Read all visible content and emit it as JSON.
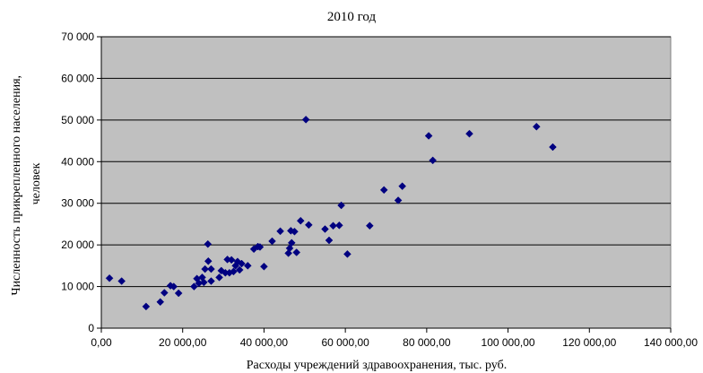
{
  "chart_data": {
    "type": "scatter",
    "title": "2010 год",
    "xlabel": "Расходы учреждений здравоохранения, тыс. руб.",
    "ylabel_line1": "Численность прикрепленного населения,",
    "ylabel_line2": "человек",
    "xlim": [
      0,
      140000
    ],
    "ylim": [
      0,
      70000
    ],
    "x_ticks": [
      0,
      20000,
      40000,
      60000,
      80000,
      100000,
      120000,
      140000
    ],
    "x_tick_labels": [
      "0,00",
      "20 000,00",
      "40 000,00",
      "60 000,00",
      "80 000,00",
      "100 000,00",
      "120 000,00",
      "140 000,00"
    ],
    "y_ticks": [
      0,
      10000,
      20000,
      30000,
      40000,
      50000,
      60000,
      70000
    ],
    "y_tick_labels": [
      "0",
      "10 000",
      "20 000",
      "30 000",
      "40 000",
      "50 000",
      "60 000",
      "70 000"
    ],
    "grid": "horizontal",
    "plot_background": "#c0c0c0",
    "marker_color": "#000080",
    "marker": "diamond",
    "points": [
      [
        2000,
        12000
      ],
      [
        5000,
        11300
      ],
      [
        11000,
        5200
      ],
      [
        14500,
        6300
      ],
      [
        15500,
        8500
      ],
      [
        17000,
        10200
      ],
      [
        17800,
        10000
      ],
      [
        19000,
        8400
      ],
      [
        22800,
        10000
      ],
      [
        23500,
        11900
      ],
      [
        24000,
        10800
      ],
      [
        24800,
        12200
      ],
      [
        25200,
        11000
      ],
      [
        25500,
        14200
      ],
      [
        26200,
        20200
      ],
      [
        26300,
        16100
      ],
      [
        27000,
        11300
      ],
      [
        27000,
        14200
      ],
      [
        29000,
        12200
      ],
      [
        29500,
        13800
      ],
      [
        30500,
        13300
      ],
      [
        31000,
        16500
      ],
      [
        31500,
        13300
      ],
      [
        32000,
        16400
      ],
      [
        32500,
        13600
      ],
      [
        33000,
        15000
      ],
      [
        33500,
        16000
      ],
      [
        34000,
        14000
      ],
      [
        34500,
        15500
      ],
      [
        36000,
        15000
      ],
      [
        37500,
        19000
      ],
      [
        38500,
        19600
      ],
      [
        39000,
        19500
      ],
      [
        40000,
        14800
      ],
      [
        42000,
        20900
      ],
      [
        44000,
        23300
      ],
      [
        46000,
        18000
      ],
      [
        46300,
        19200
      ],
      [
        46600,
        23400
      ],
      [
        46800,
        20500
      ],
      [
        47500,
        23200
      ],
      [
        48000,
        18200
      ],
      [
        49000,
        25800
      ],
      [
        50300,
        50100
      ],
      [
        51000,
        24800
      ],
      [
        55000,
        23800
      ],
      [
        56000,
        21100
      ],
      [
        57000,
        24600
      ],
      [
        58500,
        24700
      ],
      [
        59000,
        29500
      ],
      [
        60500,
        17800
      ],
      [
        66000,
        24600
      ],
      [
        69500,
        33200
      ],
      [
        73000,
        30700
      ],
      [
        74000,
        34100
      ],
      [
        80500,
        46200
      ],
      [
        81500,
        40300
      ],
      [
        90500,
        46700
      ],
      [
        107000,
        48400
      ],
      [
        111000,
        43500
      ]
    ]
  }
}
